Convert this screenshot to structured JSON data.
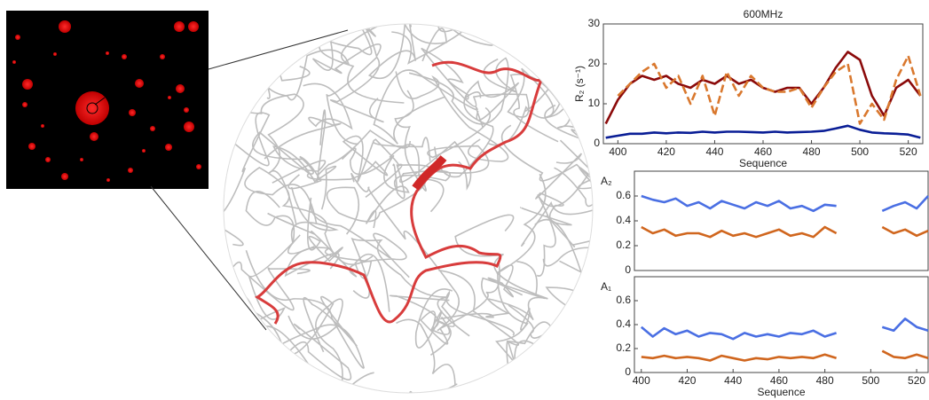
{
  "chart_data": [
    {
      "type": "line",
      "title": "600MHz",
      "ylabel": "R₂ (s⁻¹)",
      "xlabel": "Sequence",
      "x": [
        395,
        400,
        405,
        410,
        415,
        420,
        425,
        430,
        435,
        440,
        445,
        450,
        455,
        460,
        465,
        470,
        475,
        480,
        485,
        490,
        495,
        500,
        505,
        510,
        515,
        520,
        525
      ],
      "xlim": [
        394,
        526
      ],
      "xticks": [
        400,
        420,
        440,
        460,
        480,
        500,
        520
      ],
      "ylim": [
        0,
        30
      ],
      "yticks": [
        0,
        10,
        20,
        30
      ],
      "series": [
        {
          "color": "#8b0a0a",
          "style": "solid",
          "values": [
            5,
            11,
            15,
            17,
            16,
            17,
            15,
            14,
            16,
            15,
            17,
            15,
            16,
            14,
            13,
            14,
            14,
            10,
            14,
            19,
            23,
            21,
            12,
            7,
            14,
            16,
            12
          ]
        },
        {
          "color": "#d9782e",
          "style": "dashed",
          "values": [
            null,
            12,
            15,
            18,
            20,
            14,
            17,
            10,
            17,
            7,
            18,
            12,
            17,
            14,
            13,
            13,
            14,
            9,
            14,
            18,
            20,
            5,
            10,
            6,
            16,
            22,
            12
          ]
        },
        {
          "color": "#0a1e96",
          "style": "solid",
          "values": [
            1.5,
            2,
            2.5,
            2.5,
            2.8,
            2.6,
            2.8,
            2.7,
            3,
            2.8,
            3,
            3,
            2.9,
            2.8,
            3,
            2.8,
            2.9,
            3,
            3.2,
            3.8,
            4.5,
            3.5,
            2.8,
            2.6,
            2.5,
            2.3,
            1.5
          ]
        }
      ]
    },
    {
      "type": "line",
      "ylabel": "A₂",
      "x": [
        400,
        405,
        410,
        415,
        420,
        425,
        430,
        435,
        440,
        445,
        450,
        455,
        460,
        465,
        470,
        475,
        480,
        485,
        490,
        495,
        500,
        505,
        510,
        515,
        520,
        525
      ],
      "xlim": [
        397,
        525
      ],
      "ylim": [
        0,
        0.8
      ],
      "yticks": [
        0,
        0.2,
        0.4,
        0.6
      ],
      "series": [
        {
          "color": "#4a6fe3",
          "style": "solid",
          "values": [
            0.6,
            0.57,
            0.55,
            0.58,
            0.52,
            0.55,
            0.5,
            0.56,
            0.53,
            0.5,
            0.55,
            0.52,
            0.56,
            0.5,
            0.52,
            0.48,
            0.53,
            0.52,
            null,
            null,
            null,
            0.48,
            0.52,
            0.55,
            0.5,
            0.6
          ]
        },
        {
          "color": "#d0661e",
          "style": "solid",
          "values": [
            0.35,
            0.3,
            0.33,
            0.28,
            0.3,
            0.3,
            0.27,
            0.32,
            0.28,
            0.3,
            0.27,
            0.3,
            0.33,
            0.28,
            0.3,
            0.27,
            0.35,
            0.3,
            null,
            null,
            null,
            0.35,
            0.3,
            0.33,
            0.28,
            0.32
          ]
        }
      ]
    },
    {
      "type": "line",
      "ylabel": "A₁",
      "xlabel": "Sequence",
      "x": [
        400,
        405,
        410,
        415,
        420,
        425,
        430,
        435,
        440,
        445,
        450,
        455,
        460,
        465,
        470,
        475,
        480,
        485,
        490,
        495,
        500,
        505,
        510,
        515,
        520,
        525
      ],
      "xlim": [
        397,
        525
      ],
      "xticks": [
        400,
        420,
        440,
        460,
        480,
        500,
        520
      ],
      "ylim": [
        0,
        0.8
      ],
      "yticks": [
        0,
        0.2,
        0.4,
        0.6
      ],
      "series": [
        {
          "color": "#4a6fe3",
          "style": "solid",
          "values": [
            0.38,
            0.3,
            0.37,
            0.32,
            0.35,
            0.3,
            0.33,
            0.32,
            0.28,
            0.33,
            0.3,
            0.32,
            0.3,
            0.33,
            0.32,
            0.35,
            0.3,
            0.33,
            null,
            null,
            null,
            0.38,
            0.35,
            0.45,
            0.38,
            0.35
          ]
        },
        {
          "color": "#d0661e",
          "style": "solid",
          "values": [
            0.13,
            0.12,
            0.14,
            0.12,
            0.13,
            0.12,
            0.1,
            0.14,
            0.12,
            0.1,
            0.12,
            0.11,
            0.13,
            0.12,
            0.13,
            0.12,
            0.15,
            0.12,
            null,
            null,
            null,
            0.18,
            0.13,
            0.12,
            0.15,
            0.12
          ]
        }
      ]
    }
  ]
}
